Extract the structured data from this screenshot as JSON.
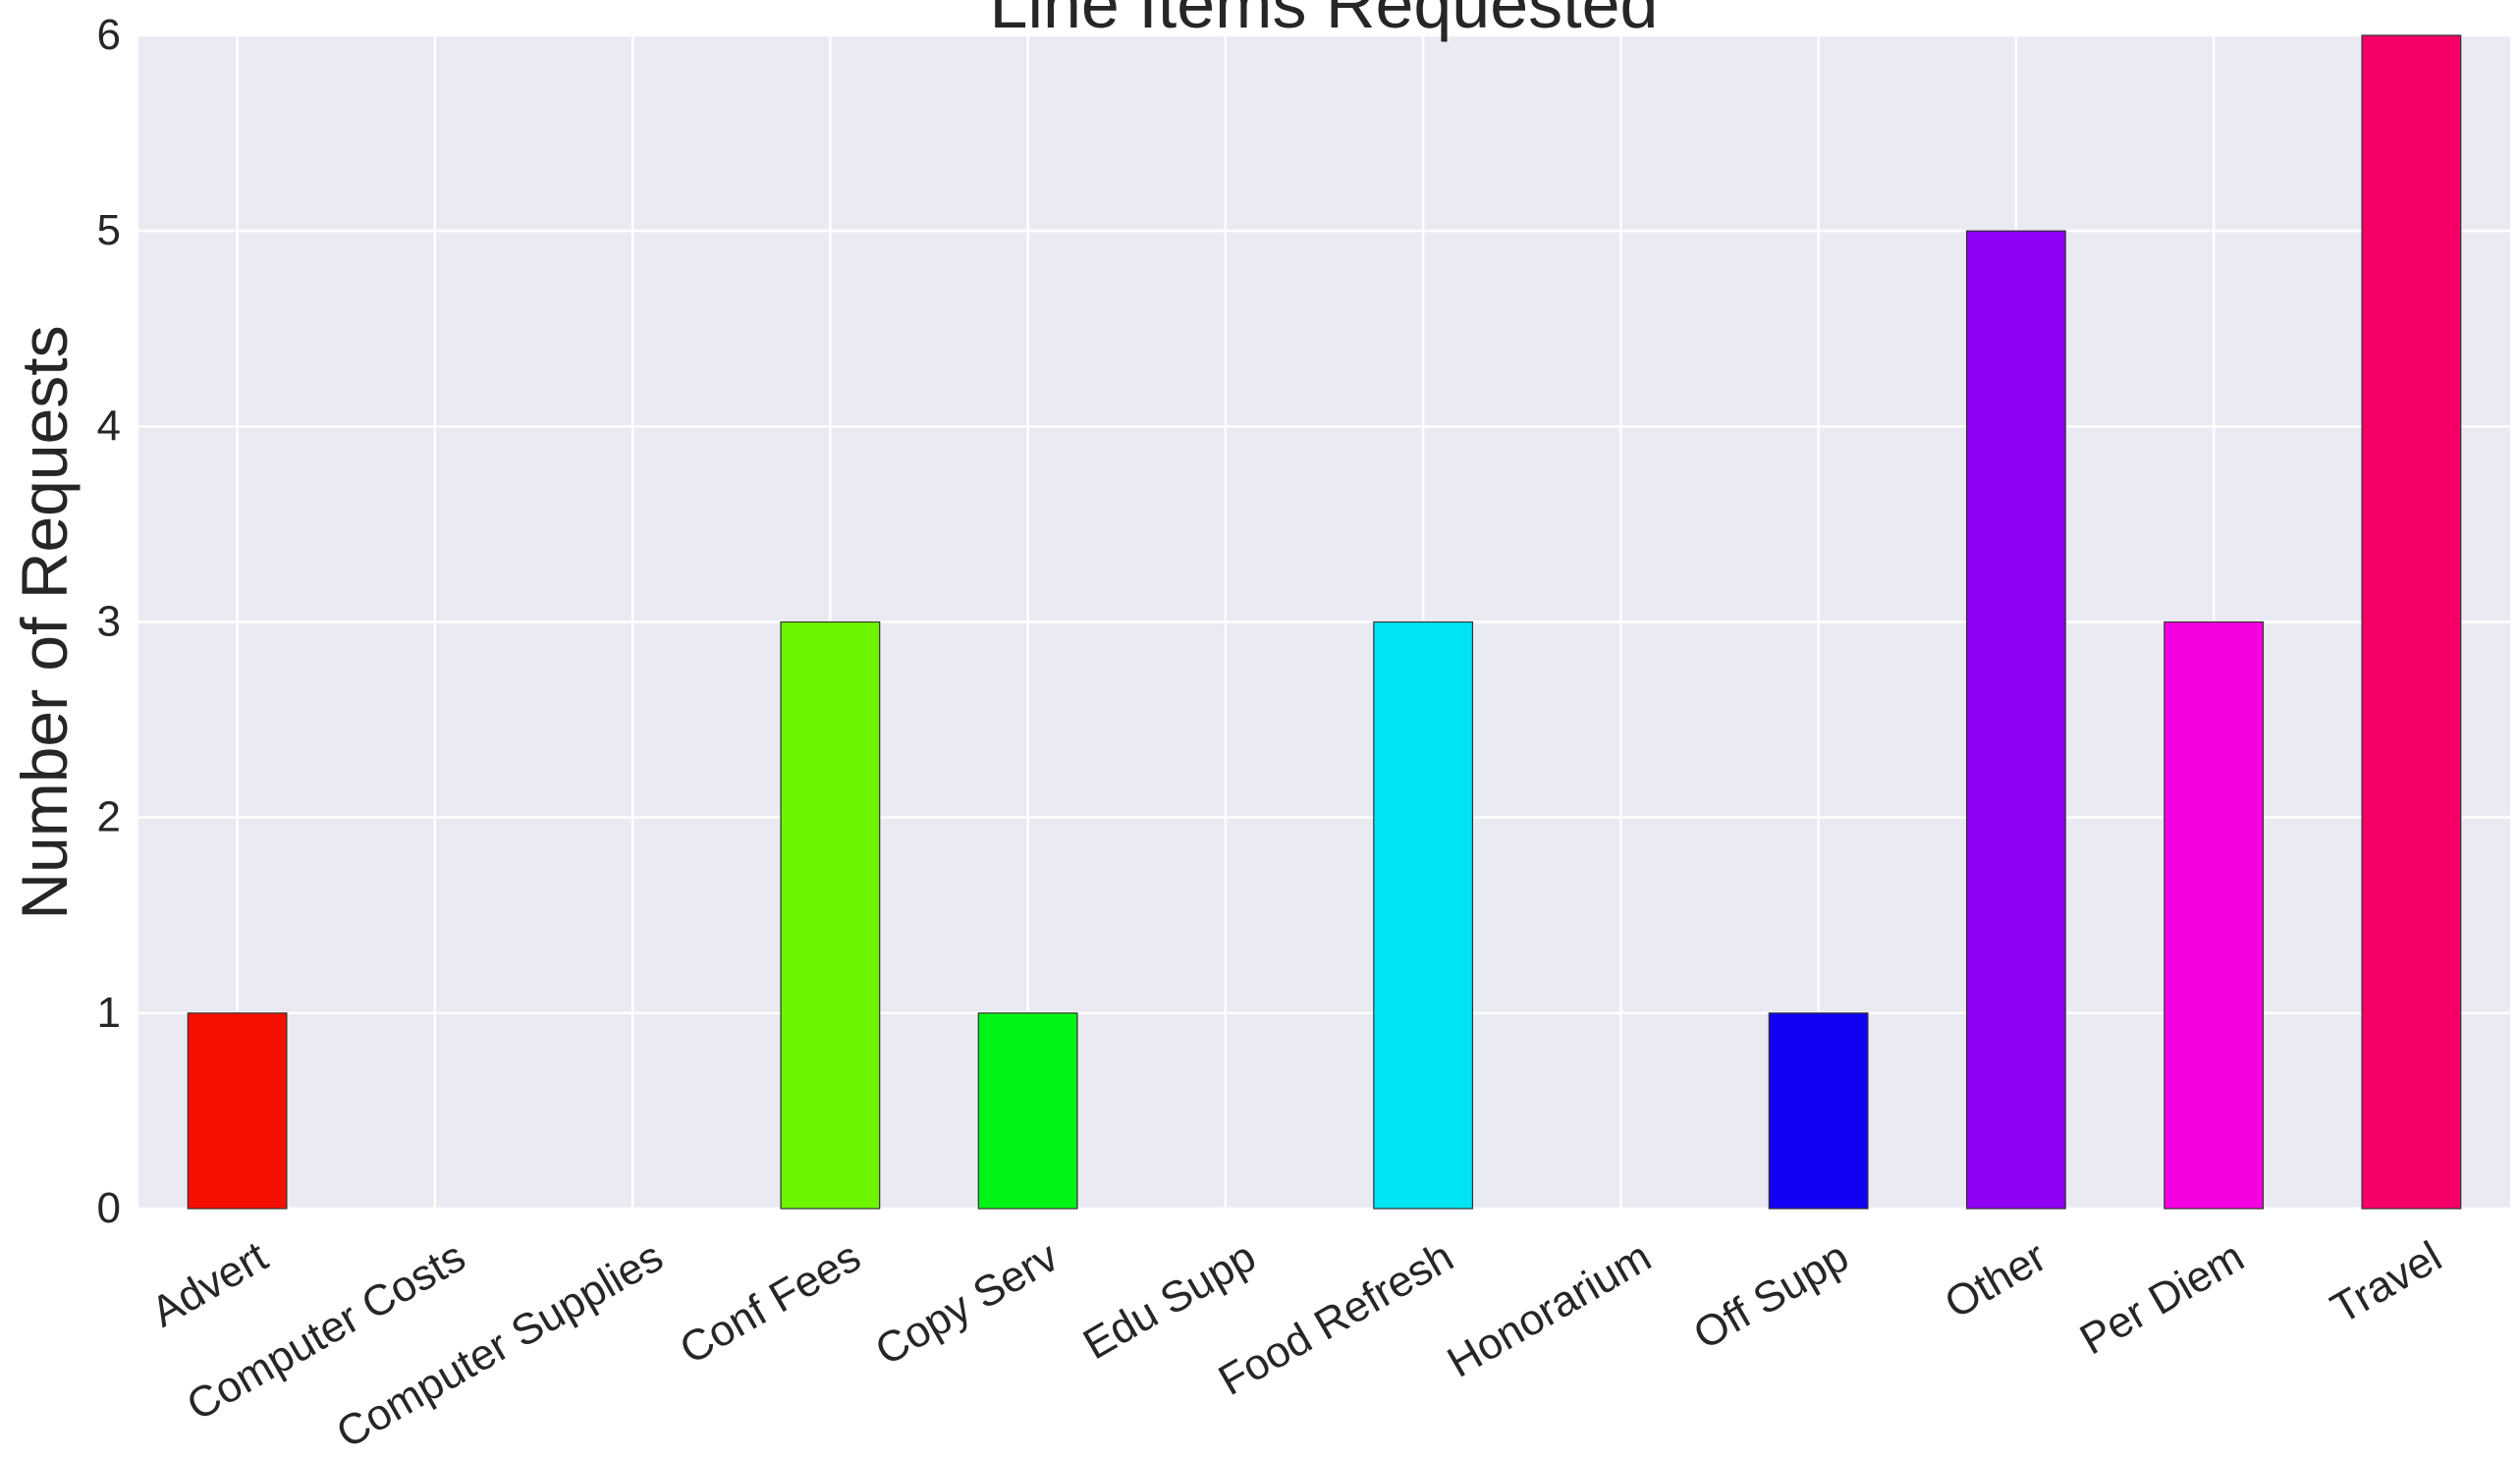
{
  "chart_data": {
    "type": "bar",
    "title": "Line Items Requested",
    "xlabel": "",
    "ylabel": "Number of Requests",
    "categories": [
      "Advert",
      "Computer Costs",
      "Computer Supplies",
      "Conf Fees",
      "Copy Serv",
      "Edu Supp",
      "Food Refresh",
      "Honorarium",
      "Off Supp",
      "Other",
      "Per Diem",
      "Travel"
    ],
    "values": [
      1,
      0,
      0,
      3,
      1,
      0,
      3,
      0,
      1,
      5,
      3,
      6
    ],
    "colors": [
      "#f50f00",
      "#f50f00",
      "#f5e300",
      "#6df500",
      "#00f516",
      "#00f5c1",
      "#00e5f5",
      "#0063f5",
      "#1100f5",
      "#8f00f5",
      "#f500e1",
      "#f50067"
    ],
    "ylim": [
      0,
      6
    ],
    "yticks": [
      "0",
      "1",
      "2",
      "3",
      "4",
      "5",
      "6"
    ],
    "grid": true,
    "legend": "none",
    "background": "#eaeaf2"
  }
}
